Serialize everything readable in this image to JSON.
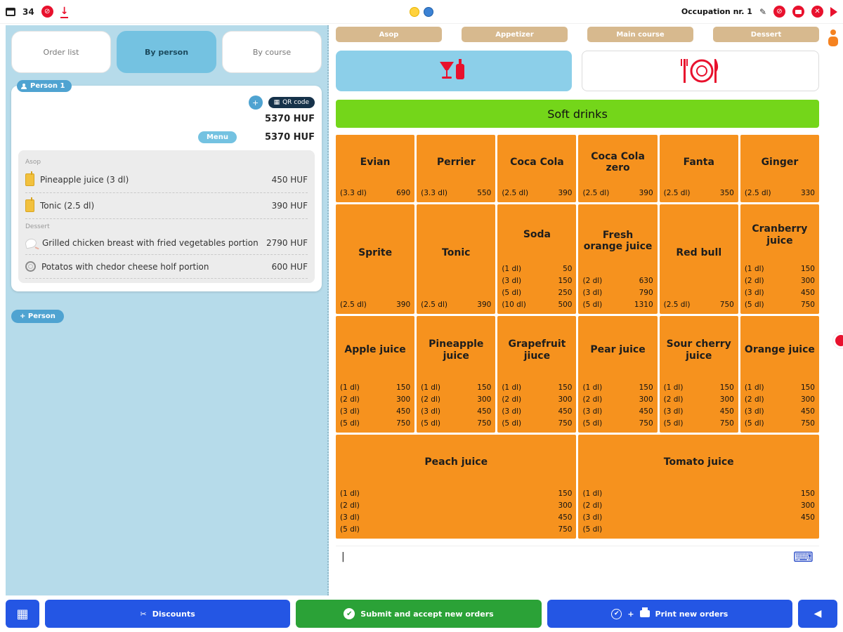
{
  "colors": {
    "orange": "#F6921E",
    "green-bar": "#74D61A",
    "tan": "#D7B98E",
    "panel-blue": "#B6DBEA",
    "tab-blue": "#74C2E1",
    "drinks-blue": "#8CCFE9",
    "pill-blue": "#4FA3D1",
    "btn-blue": "#2456E4",
    "btn-green": "#2BA237",
    "red": "#E8112D",
    "kb-blue": "#2D4FC8"
  },
  "topbar": {
    "table_number": "34",
    "occupation_label": "Occupation nr. 1",
    "icons": [
      "table-icon",
      "block-icon",
      "download-icon",
      "chick-icon",
      "globe-icon",
      "pencil-icon",
      "block-icon",
      "printer-icon",
      "close-icon",
      "flag-icon"
    ]
  },
  "left": {
    "tabs": [
      {
        "label": "Order list",
        "active": false
      },
      {
        "label": "By person",
        "active": true
      },
      {
        "label": "By course",
        "active": false
      }
    ],
    "person_card": {
      "person_label": "Person 1",
      "qr_label": "QR code",
      "total": "5370 HUF",
      "menu_label": "Menu",
      "menu_total": "5370 HUF",
      "sections": [
        {
          "name": "Asop",
          "items": [
            {
              "icon": "juice",
              "name": "Pineapple juice (3 dl)",
              "price": "450 HUF"
            },
            {
              "icon": "juice",
              "name": "Tonic (2.5 dl)",
              "price": "390 HUF"
            }
          ]
        },
        {
          "name": "Dessert",
          "items": [
            {
              "icon": "chicken",
              "name": "Grilled chicken breast with fried vegetables portion",
              "price": "2790 HUF"
            },
            {
              "icon": "plate",
              "name": "Potatos with chedor cheese holf portion",
              "price": "600 HUF"
            }
          ]
        }
      ]
    },
    "add_person_label": "+ Person"
  },
  "right": {
    "course_tabs": [
      "Asop",
      "Appetizer",
      "Main course",
      "Dessert"
    ],
    "category_title": "Soft drinks",
    "big_buttons": [
      "drinks-icon",
      "food-icon"
    ],
    "input_caret": "|",
    "products": [
      {
        "name": "Evian",
        "span": 1,
        "prices": [
          [
            "(3.3 dl)",
            "690"
          ]
        ]
      },
      {
        "name": "Perrier",
        "span": 1,
        "prices": [
          [
            "(3.3 dl)",
            "550"
          ]
        ]
      },
      {
        "name": "Coca Cola",
        "span": 1,
        "prices": [
          [
            "(2.5 dl)",
            "390"
          ]
        ]
      },
      {
        "name": "Coca Cola zero",
        "span": 1,
        "prices": [
          [
            "(2.5 dl)",
            "390"
          ]
        ]
      },
      {
        "name": "Fanta",
        "span": 1,
        "prices": [
          [
            "(2.5 dl)",
            "350"
          ]
        ]
      },
      {
        "name": "Ginger",
        "span": 1,
        "prices": [
          [
            "(2.5 dl)",
            "330"
          ]
        ]
      },
      {
        "name": "Sprite",
        "span": 1,
        "prices": [
          [
            "(2.5 dl)",
            "390"
          ]
        ]
      },
      {
        "name": "Tonic",
        "span": 1,
        "prices": [
          [
            "(2.5 dl)",
            "390"
          ]
        ]
      },
      {
        "name": "Soda",
        "span": 1,
        "prices": [
          [
            "(1 dl)",
            "50"
          ],
          [
            "(3 dl)",
            "150"
          ],
          [
            "(5 dl)",
            "250"
          ],
          [
            "(10 dl)",
            "500"
          ]
        ]
      },
      {
        "name": "Fresh orange juice",
        "span": 1,
        "prices": [
          [
            "(2 dl)",
            "630"
          ],
          [
            "(3 dl)",
            "790"
          ],
          [
            "(5 dl)",
            "1310"
          ]
        ]
      },
      {
        "name": "Red bull",
        "span": 1,
        "prices": [
          [
            "(2.5 dl)",
            "750"
          ]
        ]
      },
      {
        "name": "Cranberry juice",
        "span": 1,
        "prices": [
          [
            "(1 dl)",
            "150"
          ],
          [
            "(2 dl)",
            "300"
          ],
          [
            "(3 dl)",
            "450"
          ],
          [
            "(5 dl)",
            "750"
          ]
        ]
      },
      {
        "name": "Apple juice",
        "span": 1,
        "prices": [
          [
            "(1 dl)",
            "150"
          ],
          [
            "(2 dl)",
            "300"
          ],
          [
            "(3 dl)",
            "450"
          ],
          [
            "(5 dl)",
            "750"
          ]
        ]
      },
      {
        "name": "Pineapple juice",
        "span": 1,
        "prices": [
          [
            "(1 dl)",
            "150"
          ],
          [
            "(2 dl)",
            "300"
          ],
          [
            "(3 dl)",
            "450"
          ],
          [
            "(5 dl)",
            "750"
          ]
        ]
      },
      {
        "name": "Grapefruit jiuce",
        "span": 1,
        "prices": [
          [
            "(1 dl)",
            "150"
          ],
          [
            "(2 dl)",
            "300"
          ],
          [
            "(3 dl)",
            "450"
          ],
          [
            "(5 dl)",
            "750"
          ]
        ]
      },
      {
        "name": "Pear juice",
        "span": 1,
        "prices": [
          [
            "(1 dl)",
            "150"
          ],
          [
            "(2 dl)",
            "300"
          ],
          [
            "(3 dl)",
            "450"
          ],
          [
            "(5 dl)",
            "750"
          ]
        ]
      },
      {
        "name": "Sour cherry juice",
        "span": 1,
        "prices": [
          [
            "(1 dl)",
            "150"
          ],
          [
            "(2 dl)",
            "300"
          ],
          [
            "(3 dl)",
            "450"
          ],
          [
            "(5 dl)",
            "750"
          ]
        ]
      },
      {
        "name": "Orange juice",
        "span": 1,
        "prices": [
          [
            "(1 dl)",
            "150"
          ],
          [
            "(2 dl)",
            "300"
          ],
          [
            "(3 dl)",
            "450"
          ],
          [
            "(5 dl)",
            "750"
          ]
        ]
      },
      {
        "name": "Peach juice",
        "span": 3,
        "prices": [
          [
            "(1 dl)",
            "150"
          ],
          [
            "(2 dl)",
            "300"
          ],
          [
            "(3 dl)",
            "450"
          ],
          [
            "(5 dl)",
            "750"
          ]
        ]
      },
      {
        "name": "Tomato juice",
        "span": 3,
        "prices": [
          [
            "(1 dl)",
            "150"
          ],
          [
            "(2 dl)",
            "300"
          ],
          [
            "(3 dl)",
            "450"
          ],
          [
            "(5 dl)",
            ""
          ]
        ]
      }
    ]
  },
  "bottom": {
    "qr_button_icon": "grid-icon",
    "discounts_label": "Discounts",
    "submit_label": "Submit and accept new orders",
    "print_label": "Print new orders",
    "back_icon": "chevron-left-icon"
  }
}
